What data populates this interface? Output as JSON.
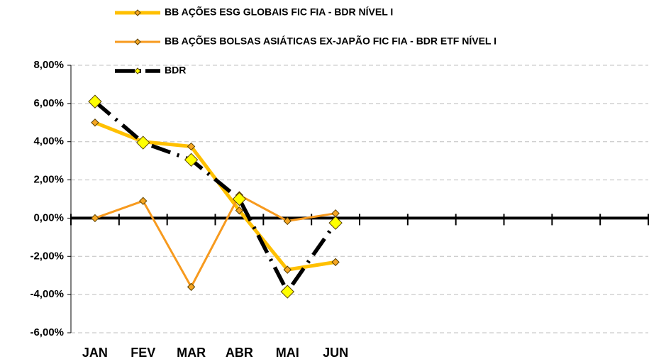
{
  "chart_data": {
    "type": "line",
    "categories": [
      "JAN",
      "FEV",
      "MAR",
      "ABR",
      "MAI",
      "JUN",
      null,
      null,
      null,
      null,
      null,
      null
    ],
    "series": [
      {
        "name": "BB AÇÕES ESG GLOBAIS FIC FIA - BDR NÍVEL I",
        "color": "#FFC000",
        "values": [
          5.0,
          4.0,
          3.75,
          0.4,
          -2.7,
          -2.3,
          null,
          null,
          null,
          null,
          null,
          null
        ]
      },
      {
        "name": "BB AÇÕES BOLSAS ASIÁTICAS EX-JAPÃO FIC FIA - BDR ETF NÍVEL I",
        "color": "#F79A1E",
        "values": [
          0.0,
          0.9,
          -3.6,
          1.2,
          -0.15,
          0.25,
          null,
          null,
          null,
          null,
          null,
          null
        ]
      },
      {
        "name": "BDR",
        "color": "#000000",
        "values": [
          6.1,
          3.95,
          3.05,
          1.0,
          -3.85,
          -0.25,
          null,
          null,
          null,
          null,
          null,
          null
        ]
      }
    ],
    "ylim": [
      -6,
      8
    ],
    "yticks": [
      {
        "value": -6,
        "label": "-6,00%"
      },
      {
        "value": -4,
        "label": "-4,00%"
      },
      {
        "value": -2,
        "label": "-2,00%"
      },
      {
        "value": 0,
        "label": "0,00%"
      },
      {
        "value": 2,
        "label": "2,00%"
      },
      {
        "value": 4,
        "label": "4,00%"
      },
      {
        "value": 6,
        "label": "6,00%"
      },
      {
        "value": 8,
        "label": "8,00%"
      }
    ],
    "grid": true,
    "legend": "top"
  }
}
